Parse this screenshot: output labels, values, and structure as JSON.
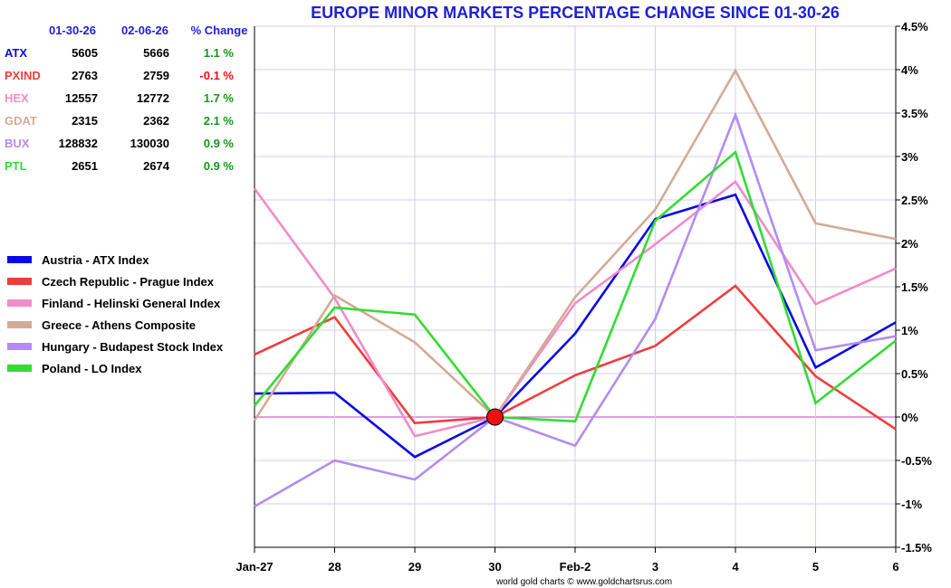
{
  "chart_data": {
    "type": "line",
    "title": "EUROPE MINOR MARKETS PERCENTAGE CHANGE SINCE 01-30-26",
    "credit": "world gold charts © www.goldchartsrus.com",
    "categories": [
      "Jan-27",
      "28",
      "29",
      "30",
      "Feb-2",
      "3",
      "4",
      "5",
      "6"
    ],
    "ylim": [
      -1.5,
      4.5
    ],
    "yticks": [
      -1.5,
      -1.0,
      -0.5,
      0,
      0.5,
      1.0,
      1.5,
      2.0,
      2.5,
      3.0,
      3.5,
      4.0,
      4.5
    ],
    "ytick_labels": [
      "-1.5%",
      "-1%",
      "-0.5%",
      "0%",
      "0.5%",
      "1%",
      "1.5%",
      "2%",
      "2.5%",
      "3%",
      "3.5%",
      "4%",
      "4.5%"
    ],
    "grid": true,
    "zero_line_color": "#c040c0",
    "origin_marker": {
      "category": "30",
      "value": 0,
      "color": "#ee1111"
    },
    "series": [
      {
        "name": "Austria - ATX Index",
        "code": "ATX",
        "color": "#0a0ae6",
        "values": [
          0.27,
          0.28,
          -0.46,
          0.0,
          0.96,
          2.28,
          2.56,
          0.57,
          1.09
        ]
      },
      {
        "name": "Czech Republic - Prague Index",
        "code": "PXIND",
        "color": "#f03c3c",
        "values": [
          0.72,
          1.15,
          -0.07,
          0.0,
          0.48,
          0.82,
          1.51,
          0.47,
          -0.14
        ]
      },
      {
        "name": "Finland - Helinski General Index",
        "code": "HEX",
        "color": "#f08cc8",
        "values": [
          2.63,
          1.37,
          -0.22,
          0.0,
          1.31,
          1.99,
          2.71,
          1.3,
          1.71
        ]
      },
      {
        "name": "Greece - Athens Composite",
        "code": "GDAT",
        "color": "#d4aa96",
        "values": [
          -0.04,
          1.4,
          0.86,
          0.0,
          1.38,
          2.39,
          3.99,
          2.23,
          2.05
        ]
      },
      {
        "name": "Hungary - Budapest Stock Index",
        "code": "BUX",
        "color": "#b48cf0",
        "values": [
          -1.03,
          -0.5,
          -0.72,
          0.0,
          -0.33,
          1.13,
          3.48,
          0.77,
          0.93
        ]
      },
      {
        "name": "Poland - LO Index",
        "code": "PTL",
        "color": "#32dc32",
        "values": [
          0.13,
          1.26,
          1.18,
          0.0,
          -0.05,
          2.26,
          3.05,
          0.16,
          0.88
        ]
      }
    ]
  },
  "table": {
    "headers": [
      "01-30-26",
      "02-06-26",
      "% Change"
    ],
    "rows": [
      {
        "code": "ATX",
        "color": "#0a0ae6",
        "start": "5605",
        "end": "5666",
        "change": "1.1 %",
        "change_color": "#129a12"
      },
      {
        "code": "PXIND",
        "color": "#f03c3c",
        "start": "2763",
        "end": "2759",
        "change": "-0.1 %",
        "change_color": "#ee1111"
      },
      {
        "code": "HEX",
        "color": "#f08cc8",
        "start": "12557",
        "end": "12772",
        "change": "1.7 %",
        "change_color": "#129a12"
      },
      {
        "code": "GDAT",
        "color": "#d4aa96",
        "start": "2315",
        "end": "2362",
        "change": "2.1 %",
        "change_color": "#129a12"
      },
      {
        "code": "BUX",
        "color": "#b48cf0",
        "start": "128832",
        "end": "130030",
        "change": "0.9 %",
        "change_color": "#129a12"
      },
      {
        "code": "PTL",
        "color": "#32dc32",
        "start": "2651",
        "end": "2674",
        "change": "0.9 %",
        "change_color": "#129a12"
      }
    ]
  }
}
